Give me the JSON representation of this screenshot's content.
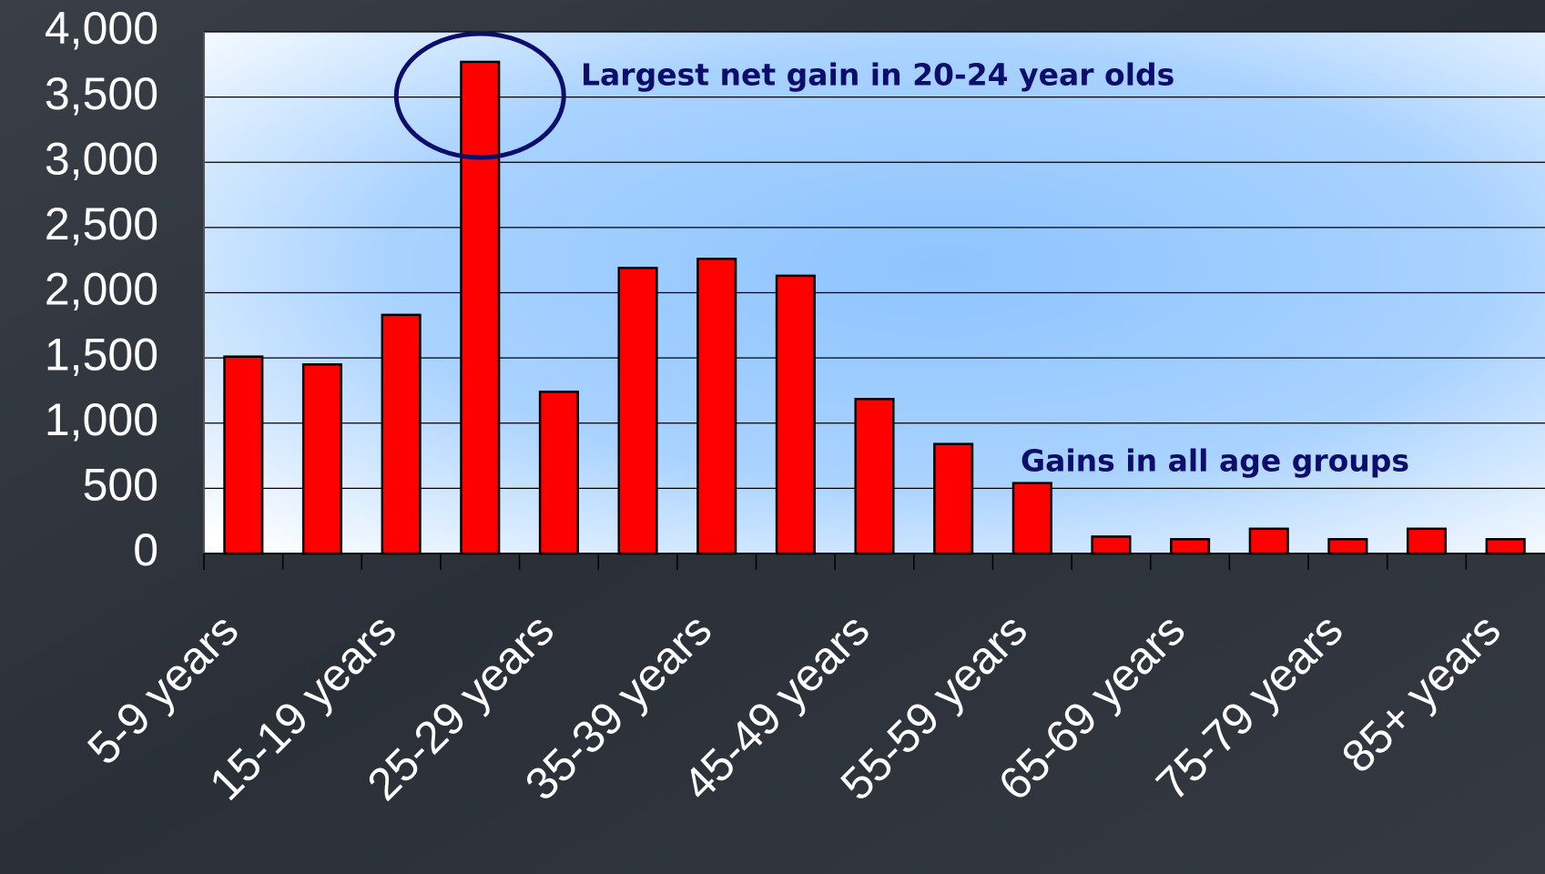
{
  "chart_data": {
    "type": "bar",
    "categories": [
      "5-9 years",
      null,
      "15-19 years",
      null,
      "25-29 years",
      null,
      "35-39 years",
      null,
      "45-49 years",
      null,
      "55-59 years",
      null,
      "65-69 years",
      null,
      "75-79 years",
      null,
      "85+ years"
    ],
    "values": [
      1510,
      1450,
      1830,
      3770,
      1240,
      2190,
      2260,
      2130,
      1185,
      840,
      540,
      130,
      110,
      190,
      110,
      190,
      110
    ],
    "color": "#ff0000",
    "ylim": [
      0,
      4000
    ],
    "yticks": [
      0,
      500,
      {
        "value": 1000,
        "label": "1,000"
      },
      {
        "value": 1500,
        "label": "1,500"
      },
      {
        "value": 2000,
        "label": "2,000"
      },
      {
        "value": 2500,
        "label": "2,500"
      },
      {
        "value": 3000,
        "label": "3,000"
      },
      {
        "value": 3500,
        "label": "3,500"
      },
      {
        "value": 4000,
        "label": "4,000"
      }
    ],
    "grid": true,
    "annotations": [
      "Largest net gain in 20-24 year olds",
      "Gains in all age groups"
    ]
  }
}
